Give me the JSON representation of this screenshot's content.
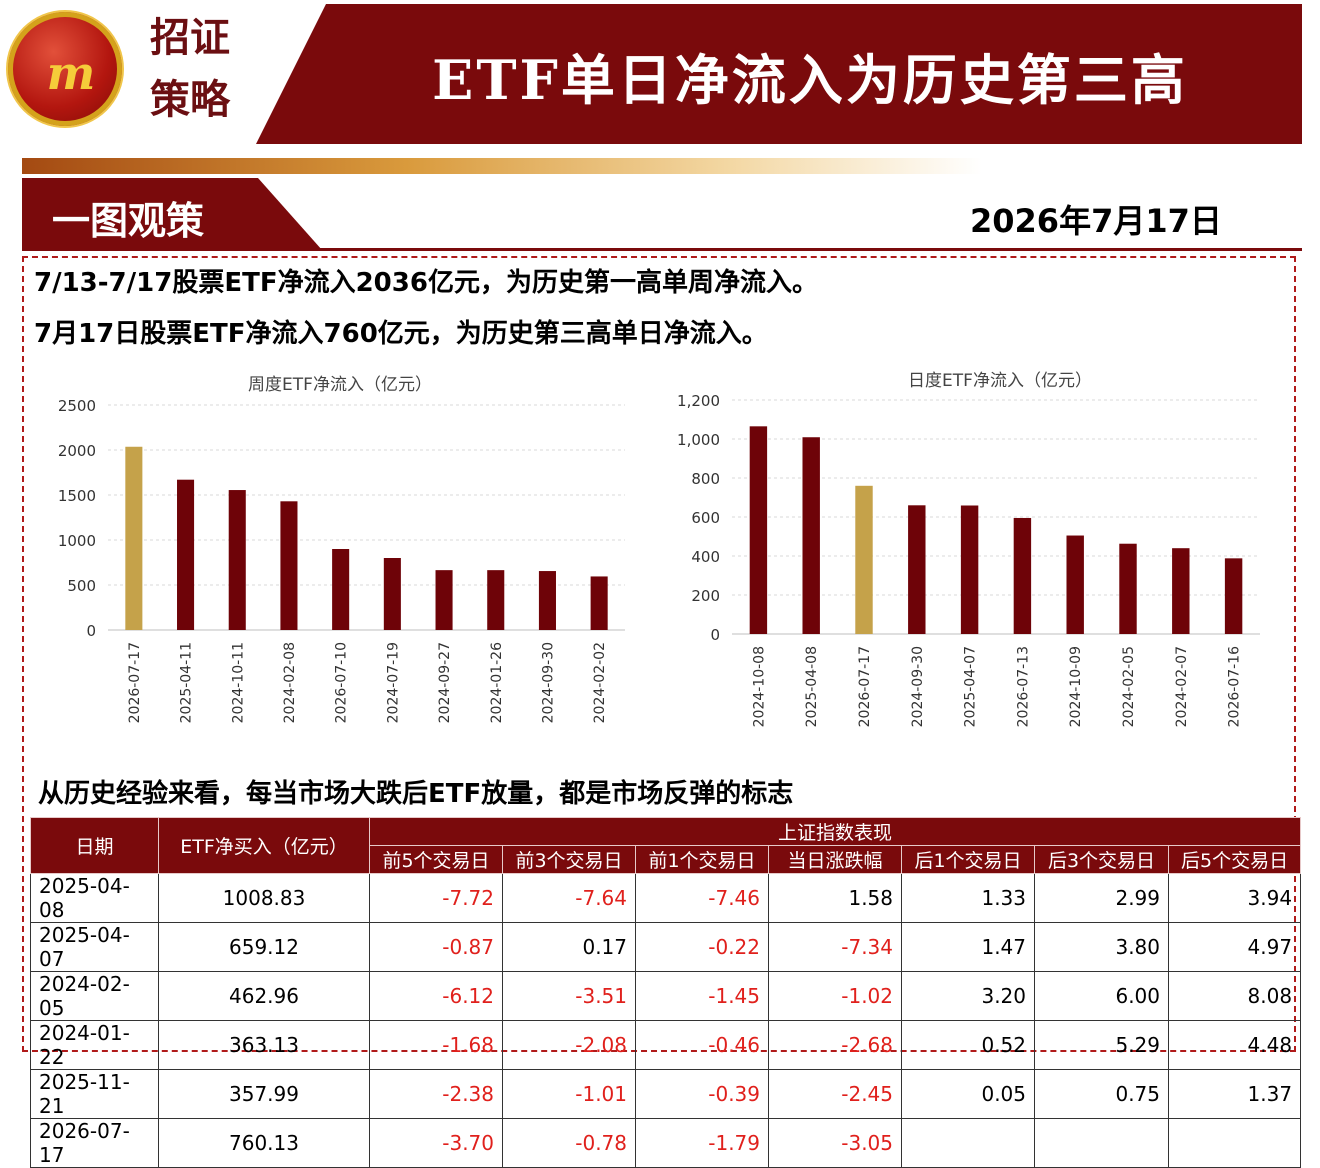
{
  "header": {
    "brand_line1": "招证",
    "brand_line2": "策略",
    "logo_mark": "m",
    "title": "ETF单日净流入为历史第三高"
  },
  "section": {
    "label": "一图观策",
    "date": "2026年7月17日"
  },
  "headlines": {
    "line1": "7/13-7/17股票ETF净流入2036亿元，为历史第一高单周净流入。",
    "line2": "7月17日股票ETF净流入760亿元，为历史第三高单日净流入。",
    "line3": "从历史经验来看，每当市场大跌后ETF放量，都是市场反弹的标志"
  },
  "colors": {
    "highlight": "#c5a24a",
    "bar": "#6e0308",
    "negative": "#e0201c",
    "header_bg": "#7a0a0c"
  },
  "chart_data": [
    {
      "type": "bar",
      "title": "周度ETF净流入（亿元）",
      "categories": [
        "2026-07-17",
        "2025-04-11",
        "2024-10-11",
        "2024-02-08",
        "2026-07-10",
        "2024-07-19",
        "2024-09-27",
        "2024-01-26",
        "2024-09-30",
        "2024-02-02"
      ],
      "values": [
        2036,
        1670,
        1555,
        1430,
        900,
        800,
        665,
        665,
        655,
        595
      ],
      "highlight_index": 0,
      "ylim": [
        0,
        2500
      ],
      "yticks": [
        0,
        500,
        1000,
        1500,
        2000,
        2500
      ],
      "ytick_labels": [
        "0",
        "500",
        "1000",
        "1500",
        "2000",
        "2500"
      ],
      "grid": true
    },
    {
      "type": "bar",
      "title": "日度ETF净流入（亿元）",
      "categories": [
        "2024-10-08",
        "2025-04-08",
        "2026-07-17",
        "2024-09-30",
        "2025-04-07",
        "2026-07-13",
        "2024-10-09",
        "2024-02-05",
        "2024-02-07",
        "2026-07-16"
      ],
      "values": [
        1065,
        1009,
        760,
        660,
        659,
        595,
        505,
        463,
        440,
        388
      ],
      "highlight_index": 2,
      "ylim": [
        0,
        1200
      ],
      "yticks": [
        0,
        200,
        400,
        600,
        800,
        1000,
        1200
      ],
      "ytick_labels": [
        "0",
        "200",
        "400",
        "600",
        "800",
        "1,000",
        "1,200"
      ],
      "grid": true
    }
  ],
  "table": {
    "col_date": "日期",
    "col_etf": "ETF净买入（亿元）",
    "group_header": "上证指数表现",
    "sub_headers": [
      "前5个交易日",
      "前3个交易日",
      "前1个交易日",
      "当日涨跌幅",
      "后1个交易日",
      "后3个交易日",
      "后5个交易日"
    ],
    "rows": [
      {
        "date": "2025-04-08",
        "etf": "1008.83",
        "vals": [
          "-7.72",
          "-7.64",
          "-7.46",
          "1.58",
          "1.33",
          "2.99",
          "3.94"
        ]
      },
      {
        "date": "2025-04-07",
        "etf": "659.12",
        "vals": [
          "-0.87",
          "0.17",
          "-0.22",
          "-7.34",
          "1.47",
          "3.80",
          "4.97"
        ]
      },
      {
        "date": "2024-02-05",
        "etf": "462.96",
        "vals": [
          "-6.12",
          "-3.51",
          "-1.45",
          "-1.02",
          "3.20",
          "6.00",
          "8.08"
        ]
      },
      {
        "date": "2024-01-22",
        "etf": "363.13",
        "vals": [
          "-1.68",
          "-2.08",
          "-0.46",
          "-2.68",
          "0.52",
          "5.29",
          "4.48"
        ]
      },
      {
        "date": "2025-11-21",
        "etf": "357.99",
        "vals": [
          "-2.38",
          "-1.01",
          "-0.39",
          "-2.45",
          "0.05",
          "0.75",
          "1.37"
        ]
      },
      {
        "date": "2026-07-17",
        "etf": "760.13",
        "vals": [
          "-3.70",
          "-0.78",
          "-1.79",
          "-3.05",
          "",
          "",
          ""
        ]
      }
    ]
  }
}
